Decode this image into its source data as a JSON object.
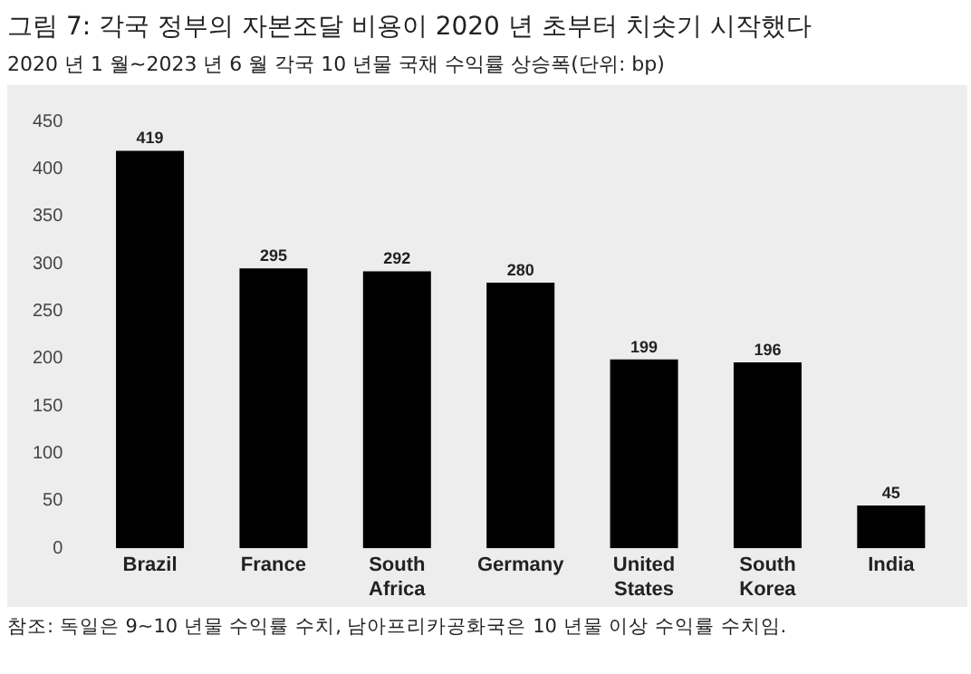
{
  "chart_data": {
    "type": "bar",
    "title": "그림 7: 각국 정부의 자본조달 비용이 2020 년 초부터 치솟기 시작했다",
    "subtitle": "2020 년 1 월~2023 년 6 월 각국 10 년물 국채 수익률 상승폭(단위: bp)",
    "categories": [
      "Brazil",
      "France",
      "South Africa",
      "Germany",
      "United States",
      "South Korea",
      "India"
    ],
    "values": [
      419,
      295,
      292,
      280,
      199,
      196,
      45
    ],
    "color": "#000000",
    "ylim": [
      0,
      450
    ],
    "yticks": [
      0,
      50,
      100,
      150,
      200,
      250,
      300,
      350,
      400,
      450
    ],
    "grid": false,
    "data_labels": true,
    "annotations": [
      "참조: 독일은 9~10 년물 수익률 수치, 남아프리카공화국은 10 년물 이상 수익률 수치임."
    ]
  }
}
